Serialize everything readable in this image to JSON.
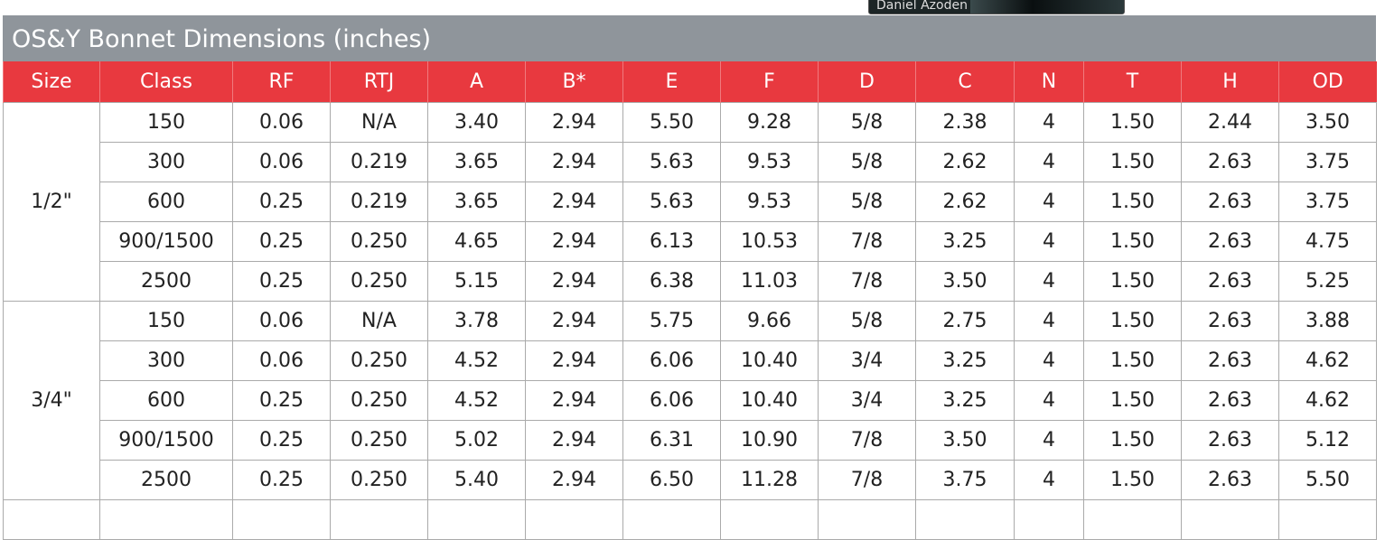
{
  "overlay": {
    "caption": "Daniel Azoden"
  },
  "header": {
    "title": "OS&Y Bonnet Dimensions (inches)"
  },
  "table": {
    "columns": [
      "Size",
      "Class",
      "RF",
      "RTJ",
      "A",
      "B*",
      "E",
      "F",
      "D",
      "C",
      "N",
      "T",
      "H",
      "OD"
    ],
    "groups": [
      {
        "size": "1/2\"",
        "rows": [
          [
            "150",
            "0.06",
            "N/A",
            "3.40",
            "2.94",
            "5.50",
            "9.28",
            "5/8",
            "2.38",
            "4",
            "1.50",
            "2.44",
            "3.50"
          ],
          [
            "300",
            "0.06",
            "0.219",
            "3.65",
            "2.94",
            "5.63",
            "9.53",
            "5/8",
            "2.62",
            "4",
            "1.50",
            "2.63",
            "3.75"
          ],
          [
            "600",
            "0.25",
            "0.219",
            "3.65",
            "2.94",
            "5.63",
            "9.53",
            "5/8",
            "2.62",
            "4",
            "1.50",
            "2.63",
            "3.75"
          ],
          [
            "900/1500",
            "0.25",
            "0.250",
            "4.65",
            "2.94",
            "6.13",
            "10.53",
            "7/8",
            "3.25",
            "4",
            "1.50",
            "2.63",
            "4.75"
          ],
          [
            "2500",
            "0.25",
            "0.250",
            "5.15",
            "2.94",
            "6.38",
            "11.03",
            "7/8",
            "3.50",
            "4",
            "1.50",
            "2.63",
            "5.25"
          ]
        ]
      },
      {
        "size": "3/4\"",
        "rows": [
          [
            "150",
            "0.06",
            "N/A",
            "3.78",
            "2.94",
            "5.75",
            "9.66",
            "5/8",
            "2.75",
            "4",
            "1.50",
            "2.63",
            "3.88"
          ],
          [
            "300",
            "0.06",
            "0.250",
            "4.52",
            "2.94",
            "6.06",
            "10.40",
            "3/4",
            "3.25",
            "4",
            "1.50",
            "2.63",
            "4.62"
          ],
          [
            "600",
            "0.25",
            "0.250",
            "4.52",
            "2.94",
            "6.06",
            "10.40",
            "3/4",
            "3.25",
            "4",
            "1.50",
            "2.63",
            "4.62"
          ],
          [
            "900/1500",
            "0.25",
            "0.250",
            "5.02",
            "2.94",
            "6.31",
            "10.90",
            "7/8",
            "3.50",
            "4",
            "1.50",
            "2.63",
            "5.12"
          ],
          [
            "2500",
            "0.25",
            "0.250",
            "5.40",
            "2.94",
            "6.50",
            "11.28",
            "7/8",
            "3.75",
            "4",
            "1.50",
            "2.63",
            "5.50"
          ]
        ]
      }
    ]
  }
}
